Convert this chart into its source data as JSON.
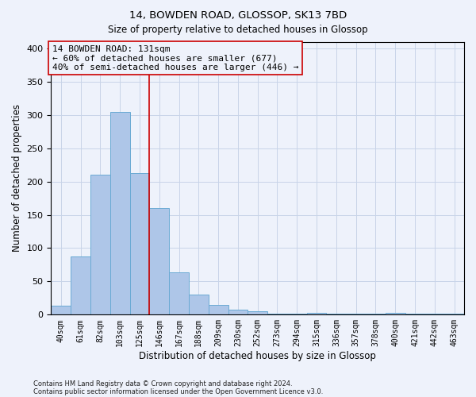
{
  "title1": "14, BOWDEN ROAD, GLOSSOP, SK13 7BD",
  "title2": "Size of property relative to detached houses in Glossop",
  "xlabel": "Distribution of detached houses by size in Glossop",
  "ylabel": "Number of detached properties",
  "footnote1": "Contains HM Land Registry data © Crown copyright and database right 2024.",
  "footnote2": "Contains public sector information licensed under the Open Government Licence v3.0.",
  "categories": [
    "40sqm",
    "61sqm",
    "82sqm",
    "103sqm",
    "125sqm",
    "146sqm",
    "167sqm",
    "188sqm",
    "209sqm",
    "230sqm",
    "252sqm",
    "273sqm",
    "294sqm",
    "315sqm",
    "336sqm",
    "357sqm",
    "378sqm",
    "400sqm",
    "421sqm",
    "442sqm",
    "463sqm"
  ],
  "values": [
    14,
    88,
    210,
    305,
    213,
    160,
    64,
    30,
    15,
    8,
    5,
    2,
    1,
    3,
    1,
    2,
    1,
    3,
    1,
    1,
    2
  ],
  "bar_color": "#aec6e8",
  "bar_edge_color": "#6aaad4",
  "grid_color": "#c8d4e8",
  "background_color": "#eef2fb",
  "vline_x": 4.5,
  "vline_color": "#cc0000",
  "annotation_line1": "14 BOWDEN ROAD: 131sqm",
  "annotation_line2": "← 60% of detached houses are smaller (677)",
  "annotation_line3": "40% of semi-detached houses are larger (446) →",
  "ylim": [
    0,
    410
  ],
  "yticks": [
    0,
    50,
    100,
    150,
    200,
    250,
    300,
    350,
    400
  ]
}
